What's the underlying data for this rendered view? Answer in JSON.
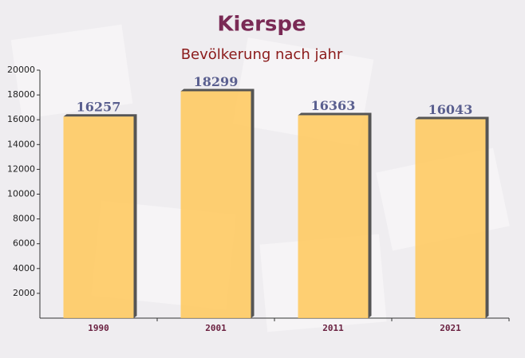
{
  "chart_data": {
    "type": "bar",
    "title": "Kierspe",
    "subtitle": "Bevölkerung nach jahr",
    "categories": [
      "1990",
      "2001",
      "2011",
      "2021"
    ],
    "values": [
      16257,
      18299,
      16363,
      16043
    ],
    "color": "#ffc85a",
    "ylim": [
      0,
      20000
    ],
    "yticks": [
      2000,
      4000,
      6000,
      8000,
      10000,
      12000,
      14000,
      16000,
      18000,
      20000
    ]
  }
}
